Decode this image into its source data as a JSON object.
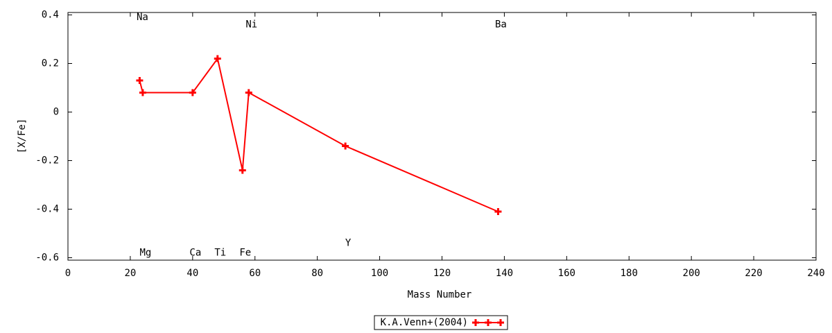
{
  "chart_data": {
    "type": "line",
    "x_label": "Mass Number",
    "y_label": "[X/Fe]",
    "x": [
      23,
      24,
      40,
      48,
      56,
      58,
      89,
      138
    ],
    "point_labels": [
      "Na",
      "Mg",
      "Ca",
      "Ti",
      "Fe",
      "Ni",
      "Y",
      "Ba"
    ],
    "series": [
      {
        "name": "K.A.Venn+(2004)",
        "color": "#ff0000",
        "values": [
          0.13,
          0.08,
          0.08,
          0.22,
          -0.24,
          0.08,
          -0.14,
          -0.41
        ]
      }
    ],
    "xlim": [
      0,
      240
    ],
    "xticks": [
      0,
      20,
      40,
      60,
      80,
      100,
      120,
      140,
      160,
      180,
      200,
      220,
      240
    ],
    "ylim": [
      -0.61,
      0.41
    ],
    "yticks": [
      -0.6,
      -0.4,
      -0.2,
      0,
      0.2,
      0.4
    ],
    "legend": "bottom"
  }
}
